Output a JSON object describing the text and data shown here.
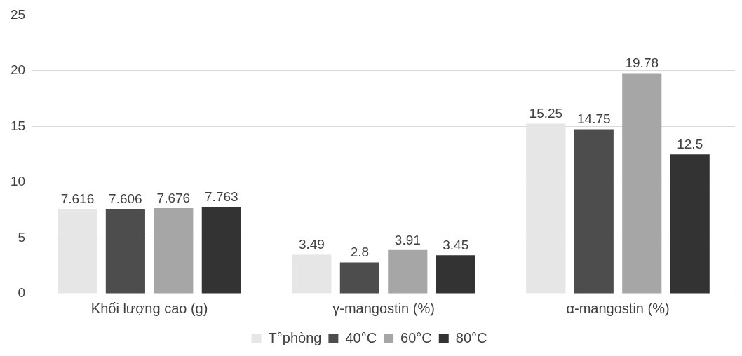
{
  "chart_data": {
    "type": "bar",
    "categories": [
      "Khối lượng cao (g)",
      "γ-mangostin (%)",
      "α-mangostin (%)"
    ],
    "series": [
      {
        "name": "T°phòng",
        "color": "#e6e6e6",
        "values": [
          7.616,
          3.49,
          15.25
        ]
      },
      {
        "name": "40°C",
        "color": "#4d4d4d",
        "values": [
          7.606,
          2.8,
          14.75
        ]
      },
      {
        "name": "60°C",
        "color": "#a6a6a6",
        "values": [
          7.676,
          3.91,
          19.78
        ]
      },
      {
        "name": "80°C",
        "color": "#333333",
        "values": [
          7.763,
          3.45,
          12.5
        ]
      }
    ],
    "ylim": [
      0,
      25
    ],
    "yticks": [
      0,
      5,
      10,
      15,
      20,
      25
    ],
    "grid": "y",
    "legend": "bottom",
    "data_labels": true
  }
}
